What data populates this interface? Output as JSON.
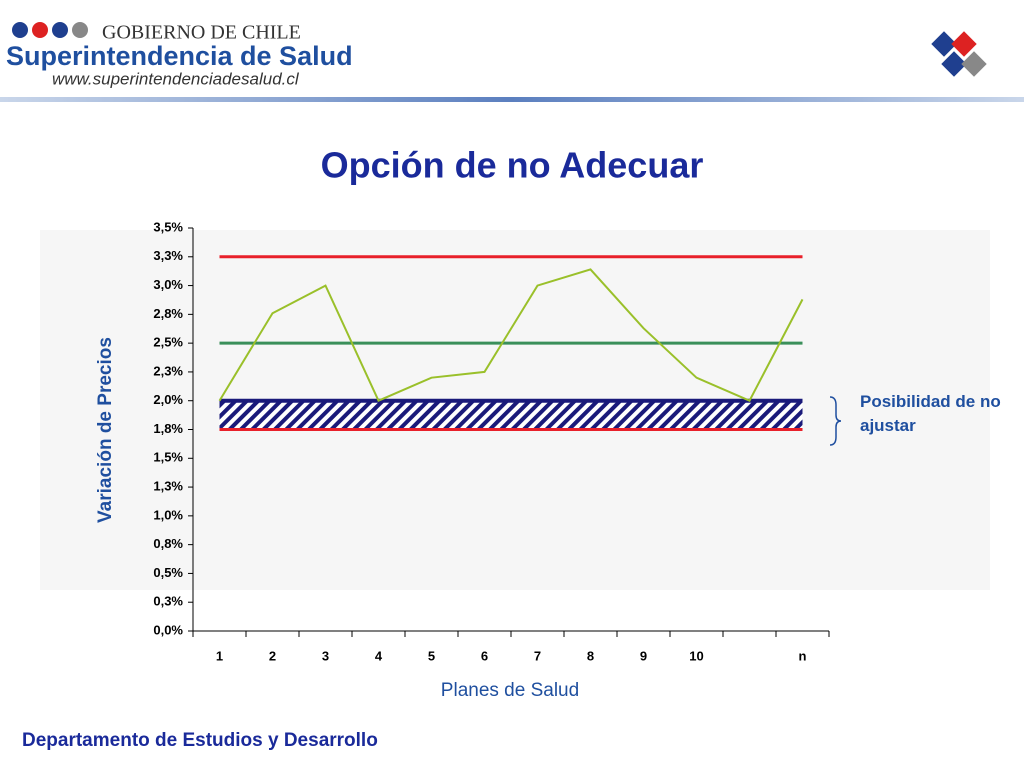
{
  "header": {
    "government": "GOBIERNO DE CHILE",
    "agency": "Superintendencia de Salud",
    "website": "www.superintendenciadesalud.cl"
  },
  "chart_data": {
    "type": "line",
    "title": "Opción de no Adecuar",
    "x_label": "Planes de Salud",
    "y_label": "Variación de Precios",
    "categories": [
      "1",
      "2",
      "3",
      "4",
      "5",
      "6",
      "7",
      "8",
      "9",
      "10",
      null,
      "n"
    ],
    "values": [
      2.0,
      2.76,
      3.0,
      2.0,
      2.2,
      2.25,
      3.0,
      3.14,
      2.63,
      2.2,
      2.0,
      2.88
    ],
    "color": "#9ac02a",
    "ylim": [
      0,
      3.5
    ],
    "yticks": [
      {
        "value": 0,
        "label": "0,0%"
      },
      {
        "value": 0.25,
        "label": "0,3%"
      },
      {
        "value": 0.5,
        "label": "0,5%"
      },
      {
        "value": 0.75,
        "label": "0,8%"
      },
      {
        "value": 1.0,
        "label": "1,0%"
      },
      {
        "value": 1.25,
        "label": "1,3%"
      },
      {
        "value": 1.5,
        "label": "1,5%"
      },
      {
        "value": 1.75,
        "label": "1,8%"
      },
      {
        "value": 2.0,
        "label": "2,0%"
      },
      {
        "value": 2.25,
        "label": "2,3%"
      },
      {
        "value": 2.5,
        "label": "2,5%"
      },
      {
        "value": 2.75,
        "label": "2,8%"
      },
      {
        "value": 3.0,
        "label": "3,0%"
      },
      {
        "value": 3.25,
        "label": "3,3%"
      },
      {
        "value": 3.5,
        "label": "3,5%"
      }
    ],
    "reference_lines": [
      {
        "value": 3.25,
        "color": "#e8202a"
      },
      {
        "value": 2.5,
        "color": "#3a8f5a"
      },
      {
        "value": 1.75,
        "color": "#e8202a"
      }
    ],
    "band": {
      "from": 1.75,
      "to": 2.0,
      "color": "#1a1a7a"
    },
    "annotation": "Posibilidad de no ajustar"
  },
  "footer": "Departamento de Estudios y Desarrollo"
}
